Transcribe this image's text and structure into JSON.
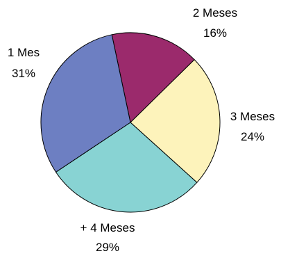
{
  "chart_data": {
    "type": "pie",
    "title": "",
    "legend": "none",
    "slices": [
      {
        "label": "2 Meses",
        "value": 16,
        "value_label": "16%",
        "color": "#9b2a6c"
      },
      {
        "label": "3 Meses",
        "value": 24,
        "value_label": "24%",
        "color": "#fdf3bb"
      },
      {
        "label": "+ 4 Meses",
        "value": 29,
        "value_label": "29%",
        "color": "#88d3d3"
      },
      {
        "label": "1 Mes",
        "value": 31,
        "value_label": "31%",
        "color": "#6d7fc2"
      }
    ]
  }
}
